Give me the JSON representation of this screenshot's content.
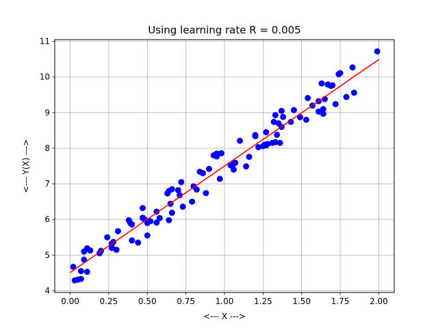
{
  "chart_data": {
    "type": "scatter",
    "title": "Using learning rate R = 0.005",
    "xlabel": "<--- X --->",
    "ylabel": "<--- Y(X) --->",
    "xlim": [
      -0.1,
      2.1
    ],
    "ylim": [
      3.95,
      11.05
    ],
    "xticks": [
      0.0,
      0.25,
      0.5,
      0.75,
      1.0,
      1.25,
      1.5,
      1.75,
      2.0
    ],
    "xtick_labels": [
      "0.00",
      "0.25",
      "0.50",
      "0.75",
      "1.00",
      "1.25",
      "1.50",
      "1.75",
      "2.00"
    ],
    "yticks": [
      4,
      5,
      6,
      7,
      8,
      9,
      10,
      11
    ],
    "ytick_labels": [
      "4",
      "5",
      "6",
      "7",
      "8",
      "9",
      "10",
      "11"
    ],
    "grid": true,
    "colors": {
      "points": "#0000ff",
      "fit_line": "#ff0000",
      "grid": "#b0b0b0"
    },
    "series": [
      {
        "type": "scatter",
        "x": [
          0.02,
          0.03,
          0.05,
          0.07,
          0.07,
          0.09,
          0.09,
          0.11,
          0.11,
          0.13,
          0.19,
          0.2,
          0.24,
          0.27,
          0.27,
          0.28,
          0.3,
          0.31,
          0.38,
          0.39,
          0.4,
          0.4,
          0.44,
          0.47,
          0.47,
          0.48,
          0.5,
          0.5,
          0.51,
          0.52,
          0.56,
          0.56,
          0.58,
          0.63,
          0.64,
          0.64,
          0.65,
          0.66,
          0.66,
          0.7,
          0.71,
          0.72,
          0.73,
          0.79,
          0.8,
          0.82,
          0.84,
          0.86,
          0.88,
          0.9,
          0.93,
          0.95,
          0.95,
          0.97,
          0.98,
          1.04,
          1.06,
          1.06,
          1.07,
          1.1,
          1.14,
          1.16,
          1.2,
          1.2,
          1.22,
          1.25,
          1.26,
          1.27,
          1.27,
          1.28,
          1.31,
          1.32,
          1.33,
          1.33,
          1.34,
          1.35,
          1.36,
          1.37,
          1.37,
          1.38,
          1.43,
          1.45,
          1.49,
          1.53,
          1.54,
          1.57,
          1.61,
          1.61,
          1.63,
          1.64,
          1.64,
          1.65,
          1.67,
          1.69,
          1.7,
          1.72,
          1.74,
          1.75,
          1.79,
          1.83,
          1.84,
          1.99
        ],
        "y": [
          4.67,
          4.29,
          4.31,
          4.55,
          4.33,
          5.1,
          4.87,
          4.53,
          5.19,
          5.13,
          5.05,
          5.12,
          5.5,
          5.2,
          5.32,
          5.37,
          5.15,
          5.67,
          5.98,
          5.9,
          5.86,
          5.41,
          5.35,
          6.05,
          6.32,
          6.01,
          5.9,
          5.55,
          5.96,
          5.95,
          6.22,
          5.91,
          6.04,
          6.73,
          5.98,
          6.8,
          6.44,
          6.85,
          6.19,
          6.82,
          6.68,
          7.05,
          6.36,
          6.5,
          6.93,
          6.84,
          7.34,
          7.3,
          6.74,
          7.42,
          7.8,
          7.77,
          7.85,
          7.14,
          7.86,
          7.52,
          7.56,
          7.4,
          7.59,
          8.21,
          7.49,
          7.76,
          8.34,
          8.37,
          8.03,
          8.06,
          8.1,
          8.45,
          8.08,
          8.12,
          8.15,
          8.74,
          8.17,
          8.93,
          8.38,
          8.7,
          8.15,
          9.05,
          8.6,
          8.88,
          8.74,
          9.07,
          8.87,
          8.8,
          9.41,
          9.2,
          9.03,
          9.32,
          9.82,
          9.1,
          8.97,
          9.38,
          9.79,
          9.75,
          9.77,
          9.24,
          10.08,
          10.11,
          9.44,
          10.27,
          9.56,
          10.72
        ]
      },
      {
        "type": "line",
        "x": [
          0.0,
          2.0
        ],
        "y": [
          4.51,
          10.49
        ]
      }
    ]
  }
}
